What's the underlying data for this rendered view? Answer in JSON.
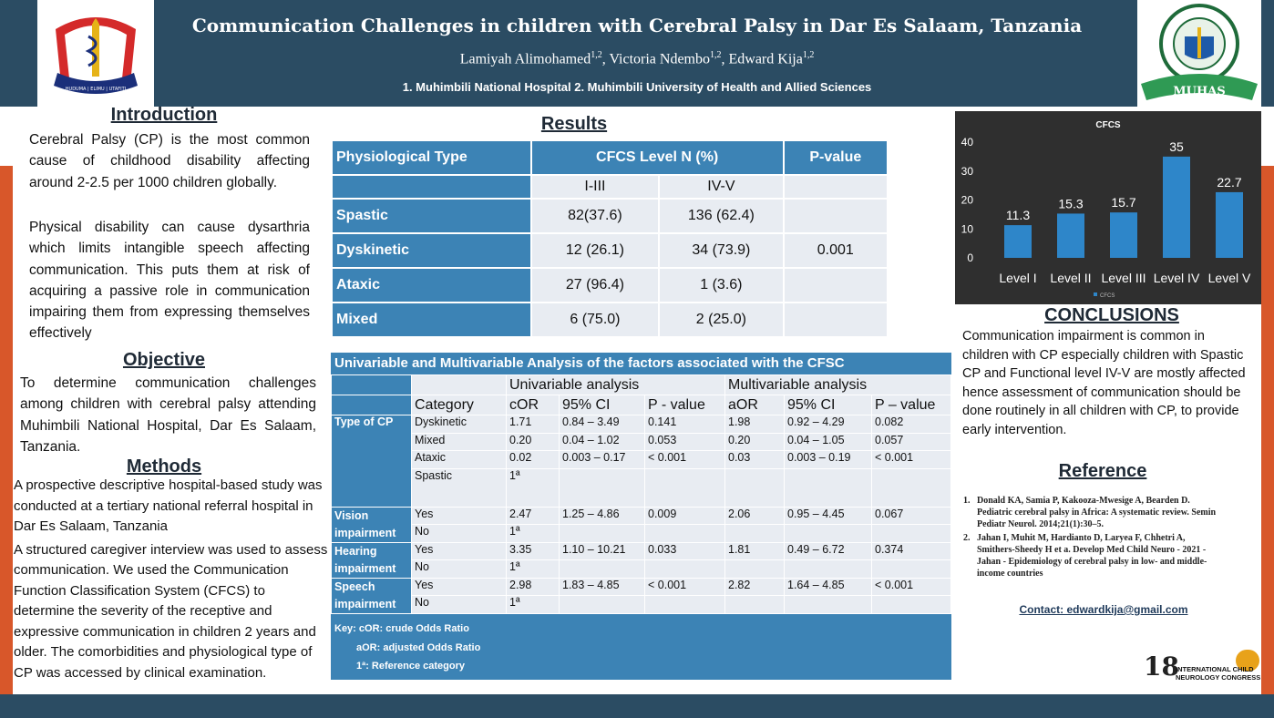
{
  "header": {
    "title": "Communication Challenges in children with Cerebral Palsy in Dar Es Salaam, Tanzania",
    "authors": [
      {
        "name": "Lamiyah Alimohamed",
        "sup": "1,2",
        "sep": ", "
      },
      {
        "name": "Victoria Ndembo",
        "sup": "1,2",
        "sep": ", "
      },
      {
        "name": "Edward Kija",
        "sup": "1,2",
        "sep": ""
      }
    ],
    "affiliations": "1. Muhimbili National Hospital 2. Muhimbili University of Health and Allied Sciences",
    "logo_left_banner": "HUDUMA | ELIMU | UTAFITI",
    "logo_right_text": "MUHAS"
  },
  "introduction": {
    "heading": "Introduction",
    "p1": "Cerebral Palsy (CP) is the most common cause of childhood disability affecting around 2-2.5 per 1000 children globally.",
    "p2": "Physical disability can cause dysarthria which limits intangible speech affecting communication. This puts them at risk of acquiring a passive role in communication impairing them from expressing themselves effectively"
  },
  "objective": {
    "heading": "Objective",
    "text": "To determine communication challenges among children with cerebral palsy attending Muhimbili National Hospital, Dar Es Salaam, Tanzania."
  },
  "methods": {
    "heading": "Methods",
    "p1": "A prospective descriptive hospital-based study was conducted at a tertiary national referral hospital in Dar Es Salaam, Tanzania",
    "p2": "A structured caregiver interview was used to assess communication. We used the Communication Function Classification System (CFCS) to determine the severity of the receptive and expressive communication in children 2 years and older. The comorbidities and physiological type of CP was accessed by clinical examination."
  },
  "results": {
    "heading": "Results",
    "table": {
      "headers": [
        "Physiological Type",
        "CFCS Level N (%)",
        "P-value"
      ],
      "subheaders": [
        "I-III",
        "IV-V"
      ],
      "rows": [
        {
          "label": "Spastic",
          "a": "82(37.6)",
          "b": "136 (62.4)",
          "p": ""
        },
        {
          "label": "Dyskinetic",
          "a": "12 (26.1)",
          "b": "34 (73.9)",
          "p": "0.001"
        },
        {
          "label": "Ataxic",
          "a": "27 (96.4)",
          "b": "1 (3.6)",
          "p": ""
        },
        {
          "label": "Mixed",
          "a": "6 (75.0)",
          "b": "2 (25.0)",
          "p": ""
        }
      ]
    }
  },
  "analysis": {
    "title": "Univariable and Multivariable Analysis of the factors associated with the CFSC",
    "group_uni": "Univariable analysis",
    "group_multi": "Multivariable analysis",
    "columns": [
      "Category",
      "cOR",
      "95% CI",
      "P - value",
      "aOR",
      "95% CI",
      "P – value"
    ],
    "groups": [
      {
        "label": "Type of CP",
        "rows": [
          [
            "Dyskinetic",
            "1.71",
            "0.84 – 3.49",
            "0.141",
            "1.98",
            "0.92 – 4.29",
            "0.082"
          ],
          [
            "Mixed",
            "0.20",
            "0.04 – 1.02",
            "0.053",
            "0.20",
            "0.04 – 1.05",
            "0.057"
          ],
          [
            "Ataxic",
            "0.02",
            "0.003 – 0.17",
            "< 0.001",
            "0.03",
            "0.003 – 0.19",
            "< 0.001"
          ],
          [
            "Spastic",
            "1ª",
            "",
            "",
            "",
            "",
            ""
          ]
        ]
      },
      {
        "label": "Vision impairment",
        "rows": [
          [
            "Yes",
            "2.47",
            "1.25 – 4.86",
            "0.009",
            "2.06",
            "0.95 – 4.45",
            "0.067"
          ],
          [
            "No",
            "1ª",
            "",
            "",
            "",
            "",
            ""
          ]
        ]
      },
      {
        "label": "Hearing impairment",
        "rows": [
          [
            "Yes",
            "3.35",
            "1.10 – 10.21",
            "0.033",
            "1.81",
            "0.49 – 6.72",
            "0.374"
          ],
          [
            "No",
            "1ª",
            "",
            "",
            "",
            "",
            ""
          ]
        ]
      },
      {
        "label": "Speech impairment",
        "rows": [
          [
            "Yes",
            "2.98",
            "1.83 – 4.85",
            "< 0.001",
            "2.82",
            "1.64 – 4.85",
            "< 0.001"
          ],
          [
            "No",
            "1ª",
            "",
            "",
            "",
            "",
            ""
          ]
        ]
      }
    ],
    "key": [
      "Key: cOR: crude Odds Ratio",
      "aOR: adjusted Odds Ratio",
      "1ª: Reference category"
    ]
  },
  "chart_data": {
    "type": "bar",
    "title": "CFCS",
    "categories": [
      "Level I",
      "Level II",
      "Level III",
      "Level IV",
      "Level V"
    ],
    "series": [
      {
        "name": "CFCS",
        "values": [
          11.3,
          15.3,
          15.7,
          35,
          22.7
        ]
      }
    ],
    "yticks": [
      0,
      10,
      20,
      30,
      40
    ],
    "ylim": [
      0,
      40
    ],
    "grid": false,
    "legend": "bottom",
    "colors": {
      "bar": "#2e86c9",
      "background": "#2f2f2f",
      "text": "#ffffff"
    }
  },
  "conclusions": {
    "heading": "CONCLUSIONS",
    "text": "Communication impairment is common in children with CP especially children with Spastic CP and Functional level IV-V are mostly affected hence assessment of communication should be done routinely in all children with CP, to provide early intervention."
  },
  "references": {
    "heading": "Reference",
    "items": [
      "Donald KA, Samia P, Kakooza-Mwesige A, Bearden D. Pediatric cerebral palsy in Africa: A systematic review. Semin Pediatr Neurol. 2014;21(1):30–5.",
      "Jahan I, Muhit M, Hardianto D, Laryea F, Chhetri A, Smithers-Sheedy H  et a. Develop Med Child Neuro - 2021 - Jahan - Epidemiology of cerebral palsy in low- and middle-income countries"
    ],
    "contact": "Contact: edwardkija@gmail.com"
  },
  "conference_logo": {
    "number": "18",
    "line1": "INTERNATIONAL CHILD",
    "line2": "NEUROLOGY CONGRESS"
  }
}
